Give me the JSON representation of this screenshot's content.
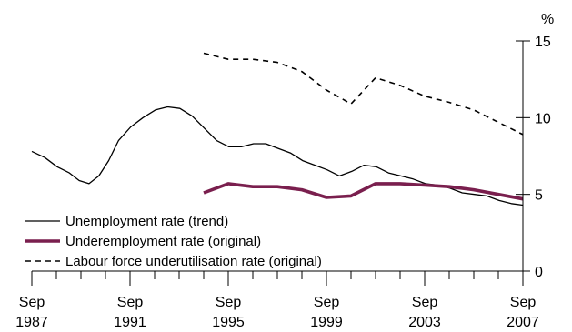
{
  "chart_data": {
    "type": "line",
    "title": "",
    "xlabel": "",
    "ylabel": "%",
    "xlim": [
      1987.67,
      2007.67
    ],
    "ylim": [
      0,
      15
    ],
    "grid": false,
    "legend_placement": "bottom-left",
    "y_axis_side": "right",
    "y_ticks": [
      0,
      5,
      10,
      15
    ],
    "y_tick_labels": [
      "0",
      "5",
      "10",
      "15"
    ],
    "x_tick_labels": [
      {
        "month": "Sep",
        "year": "1987",
        "x": 1987.67
      },
      {
        "month": "Sep",
        "year": "1991",
        "x": 1991.67
      },
      {
        "month": "Sep",
        "year": "1995",
        "x": 1995.67
      },
      {
        "month": "Sep",
        "year": "1999",
        "x": 1999.67
      },
      {
        "month": "Sep",
        "year": "2003",
        "x": 2003.67
      },
      {
        "month": "Sep",
        "year": "2007",
        "x": 2007.67
      }
    ],
    "series": [
      {
        "name": "Unemployment rate (trend)",
        "color": "#000000",
        "style": "solid-thin",
        "points": [
          [
            1987.67,
            7.8
          ],
          [
            1988.2,
            7.4
          ],
          [
            1988.7,
            6.8
          ],
          [
            1989.2,
            6.4
          ],
          [
            1989.6,
            5.9
          ],
          [
            1990.0,
            5.7
          ],
          [
            1990.4,
            6.2
          ],
          [
            1990.8,
            7.2
          ],
          [
            1991.2,
            8.5
          ],
          [
            1991.7,
            9.4
          ],
          [
            1992.2,
            10.0
          ],
          [
            1992.7,
            10.5
          ],
          [
            1993.2,
            10.7
          ],
          [
            1993.7,
            10.6
          ],
          [
            1994.2,
            10.1
          ],
          [
            1994.7,
            9.3
          ],
          [
            1995.2,
            8.5
          ],
          [
            1995.7,
            8.1
          ],
          [
            1996.2,
            8.1
          ],
          [
            1996.7,
            8.3
          ],
          [
            1997.2,
            8.3
          ],
          [
            1997.7,
            8.0
          ],
          [
            1998.2,
            7.7
          ],
          [
            1998.7,
            7.2
          ],
          [
            1999.2,
            6.9
          ],
          [
            1999.7,
            6.6
          ],
          [
            2000.2,
            6.2
          ],
          [
            2000.7,
            6.5
          ],
          [
            2001.2,
            6.9
          ],
          [
            2001.7,
            6.8
          ],
          [
            2002.2,
            6.4
          ],
          [
            2002.7,
            6.2
          ],
          [
            2003.2,
            6.0
          ],
          [
            2003.7,
            5.7
          ],
          [
            2004.2,
            5.6
          ],
          [
            2004.7,
            5.4
          ],
          [
            2005.2,
            5.1
          ],
          [
            2005.7,
            5.0
          ],
          [
            2006.2,
            4.9
          ],
          [
            2006.7,
            4.6
          ],
          [
            2007.2,
            4.4
          ],
          [
            2007.67,
            4.3
          ]
        ]
      },
      {
        "name": "Underemployment rate (original)",
        "color": "#7a1f4e",
        "style": "solid-thick",
        "points": [
          [
            1994.67,
            5.1
          ],
          [
            1995.67,
            5.7
          ],
          [
            1996.67,
            5.5
          ],
          [
            1997.67,
            5.5
          ],
          [
            1998.67,
            5.3
          ],
          [
            1999.67,
            4.8
          ],
          [
            2000.67,
            4.9
          ],
          [
            2001.67,
            5.7
          ],
          [
            2002.67,
            5.7
          ],
          [
            2003.67,
            5.6
          ],
          [
            2004.67,
            5.5
          ],
          [
            2005.67,
            5.3
          ],
          [
            2006.67,
            5.0
          ],
          [
            2007.67,
            4.7
          ]
        ]
      },
      {
        "name": "Labour force underutilisation rate (original)",
        "color": "#000000",
        "style": "dashed",
        "points": [
          [
            1994.67,
            14.2
          ],
          [
            1995.67,
            13.8
          ],
          [
            1996.67,
            13.8
          ],
          [
            1997.67,
            13.6
          ],
          [
            1998.67,
            13.0
          ],
          [
            1999.67,
            11.8
          ],
          [
            2000.67,
            10.9
          ],
          [
            2001.67,
            12.6
          ],
          [
            2002.67,
            12.1
          ],
          [
            2003.67,
            11.4
          ],
          [
            2004.67,
            11.0
          ],
          [
            2005.67,
            10.5
          ],
          [
            2006.67,
            9.7
          ],
          [
            2007.67,
            8.9
          ]
        ]
      }
    ]
  }
}
